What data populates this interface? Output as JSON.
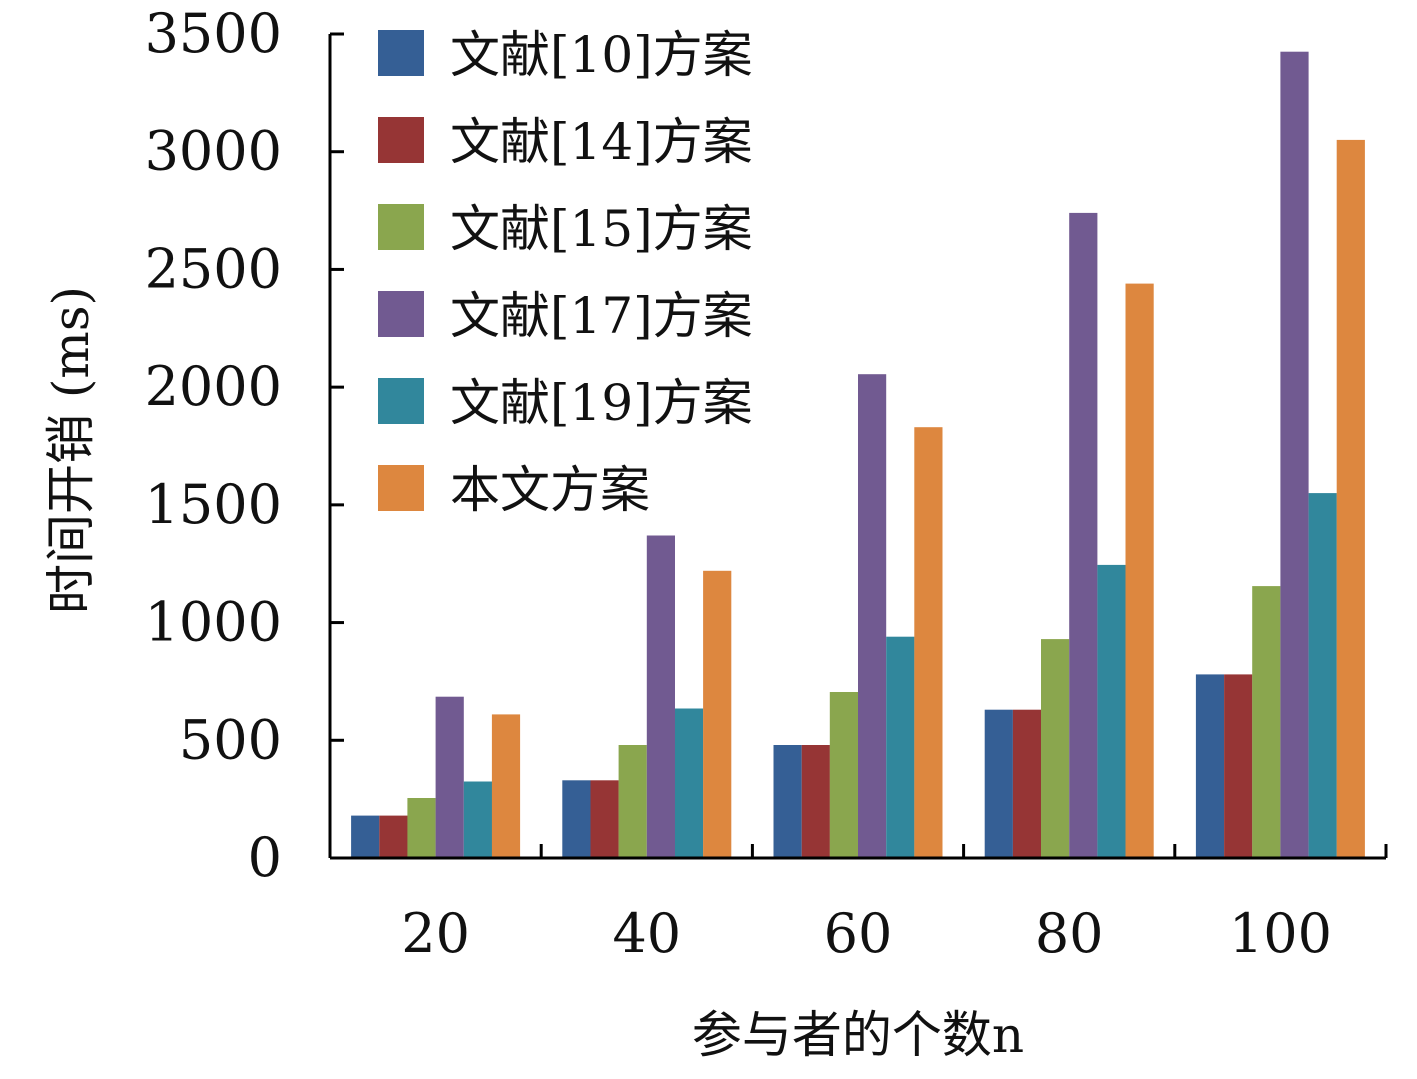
{
  "chart_data": {
    "type": "bar",
    "categories": [
      "20",
      "40",
      "60",
      "80",
      "100"
    ],
    "series": [
      {
        "name": "文献[10]方案",
        "color": "#355f95",
        "values": [
          180,
          330,
          480,
          630,
          780
        ]
      },
      {
        "name": "文献[14]方案",
        "color": "#963535",
        "values": [
          180,
          330,
          480,
          630,
          780
        ]
      },
      {
        "name": "文献[15]方案",
        "color": "#8aa64e",
        "values": [
          255,
          480,
          705,
          930,
          1155
        ]
      },
      {
        "name": "文献[17]方案",
        "color": "#715a91",
        "values": [
          685,
          1370,
          2055,
          2740,
          3425
        ]
      },
      {
        "name": "文献[19]方案",
        "color": "#31879c",
        "values": [
          325,
          635,
          940,
          1245,
          1550
        ]
      },
      {
        "name": "本文方案",
        "color": "#dd873f",
        "values": [
          610,
          1220,
          1830,
          2440,
          3050
        ]
      }
    ],
    "xlabel": "参与者的个数n",
    "ylabel": "时间开销 (ms)",
    "ylim": [
      0,
      3500
    ],
    "yticks": [
      "0",
      "500",
      "1000",
      "1500",
      "2000",
      "2500",
      "3000",
      "3500"
    ],
    "grid": false,
    "legend_position": "top-left"
  }
}
